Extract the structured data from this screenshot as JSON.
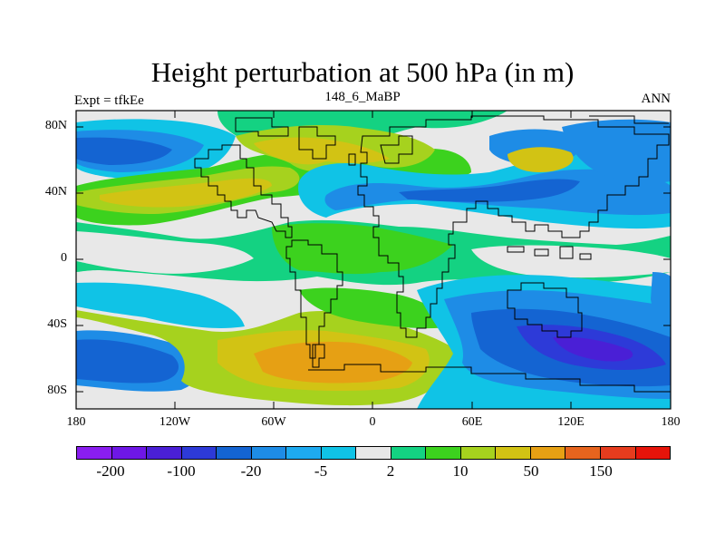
{
  "title": "Height perturbation at 500 hPa (in m)",
  "left_string": "Expt = tfkEe",
  "center_string": "148_6_MaBP",
  "right_string": "ANN",
  "lat_labels": [
    "80N",
    "40N",
    "0",
    "40S",
    "80S"
  ],
  "lon_labels": [
    "180",
    "120W",
    "60W",
    "0",
    "60E",
    "120E",
    "180"
  ],
  "colorbar": {
    "colors": [
      "#8a1ef0",
      "#6e17e6",
      "#4a1fd6",
      "#2d3ad8",
      "#1464d2",
      "#1e8ce6",
      "#1eaaf0",
      "#10c3e6",
      "#e8e8e8",
      "#14d282",
      "#3cd21e",
      "#a6d21e",
      "#d2c314",
      "#e6a014",
      "#e6641e",
      "#e63c1e",
      "#e6140a"
    ],
    "labels": [
      "-200",
      "-100",
      "-20",
      "-5",
      "2",
      "10",
      "50",
      "150"
    ]
  },
  "map_field_colors": {
    "background": "#e8e8e8",
    "neg_light": "#10c3e6",
    "neg_mid": "#1e8ce6",
    "neg_strong": "#1464d2",
    "neg_deep": "#2d3ad8",
    "neg_extreme": "#4a1fd6",
    "pos_light": "#14d282",
    "pos_mid": "#3cd21e",
    "pos_yellowgreen": "#a6d21e",
    "pos_yellow": "#d2c314",
    "pos_orange": "#e6a014"
  }
}
